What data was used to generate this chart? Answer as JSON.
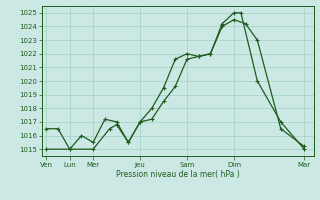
{
  "xlabel": "Pression niveau de la mer( hPa )",
  "background_color": "#cce8e4",
  "grid_color": "#99ccbb",
  "line_color": "#1e5c1e",
  "ylim": [
    1014.5,
    1025.5
  ],
  "yticks": [
    1015,
    1016,
    1017,
    1018,
    1019,
    1020,
    1021,
    1022,
    1023,
    1024,
    1025
  ],
  "xtick_positions": [
    0,
    1,
    2,
    4,
    6,
    8,
    11
  ],
  "xtick_labels": [
    "Ven",
    "Lun",
    "Mer",
    "Jeu",
    "Sam",
    "Dim",
    "Mar"
  ],
  "xlim": [
    -0.2,
    11.4
  ],
  "series1_x": [
    0,
    1,
    2,
    2.7,
    3,
    3.5,
    4,
    4.5,
    5,
    5.5,
    6,
    6.5,
    7,
    7.5,
    8,
    8.3,
    9,
    10,
    11
  ],
  "series1_y": [
    1015,
    1015,
    1015,
    1016.5,
    1016.8,
    1015.5,
    1017,
    1017.2,
    1018.5,
    1019.6,
    1021.6,
    1021.8,
    1022,
    1024.2,
    1025,
    1025,
    1020,
    1017,
    1015
  ],
  "series2_x": [
    0,
    0.5,
    1,
    1.5,
    2,
    2.5,
    3,
    3.5,
    4,
    4.5,
    5,
    5.5,
    6,
    6.5,
    7,
    7.5,
    8,
    8.5,
    9,
    10,
    11
  ],
  "series2_y": [
    1016.5,
    1016.5,
    1015,
    1016,
    1015.5,
    1017.2,
    1017,
    1015.5,
    1017,
    1018,
    1019.5,
    1021.6,
    1022,
    1021.8,
    1022,
    1024.0,
    1024.5,
    1024.2,
    1023,
    1016.5,
    1015.2
  ],
  "linewidth": 0.9,
  "marker_size": 3.5,
  "tick_labelsize": 5.0,
  "xlabel_fontsize": 5.5
}
